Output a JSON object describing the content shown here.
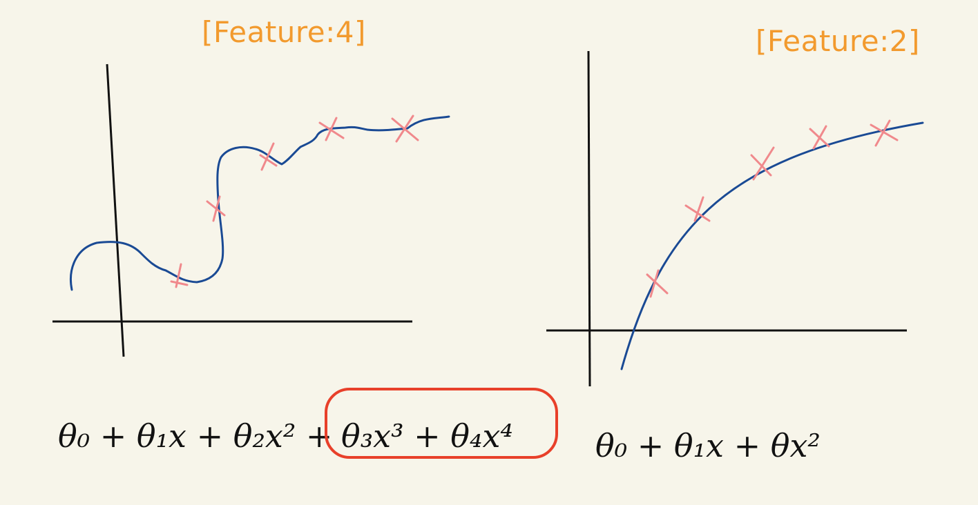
{
  "colors": {
    "background": "#f7f5ea",
    "label": "#f29a2e",
    "axis": "#111111",
    "curve": "#1a4a94",
    "marker": "#f0898c",
    "highlight": "#e8402a",
    "ink": "#111111"
  },
  "left_panel": {
    "label": "[Feature:4]",
    "equation": {
      "prefix": "θ₀ + θ₁x + θ₂x² +",
      "highlighted": "θ₃x³ + θ₄x⁴"
    }
  },
  "right_panel": {
    "label": "[Feature:2]",
    "equation": "θ₀ + θ₁x + θx²"
  }
}
